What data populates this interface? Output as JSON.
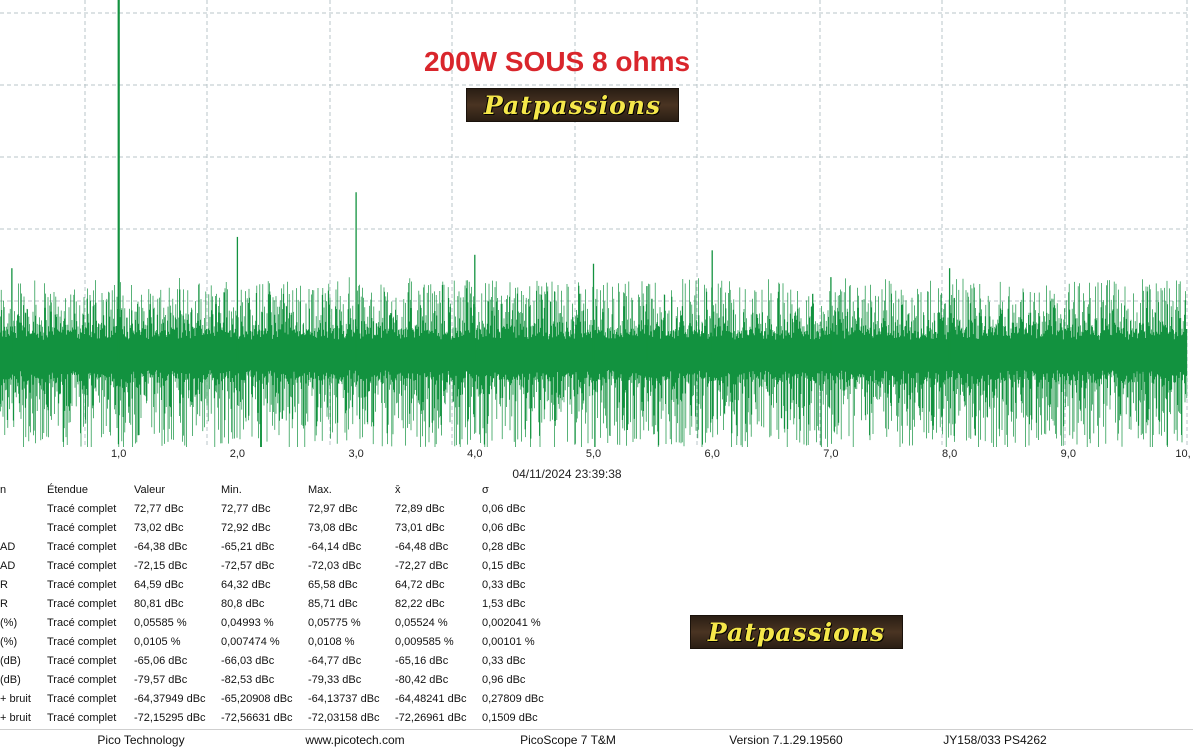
{
  "overlay": {
    "title": "200W SOUS 8 ohms",
    "logo_top": "Patpassions",
    "logo_bottom": "Patpassions"
  },
  "spectrum": {
    "x_range": [
      0,
      10
    ],
    "x_ticks": [
      "1,0",
      "2,0",
      "3,0",
      "4,0",
      "5,0",
      "6,0",
      "7,0",
      "8,0",
      "9,0",
      "10,"
    ],
    "trace_color": "#12923f",
    "grid_color": "#b8c4c8",
    "harmonic_peaks": [
      {
        "x": 1.0,
        "level": 1.0
      },
      {
        "x": 2.0,
        "level": 0.47
      },
      {
        "x": 3.0,
        "level": 0.57
      },
      {
        "x": 4.0,
        "level": 0.43
      },
      {
        "x": 5.0,
        "level": 0.41
      },
      {
        "x": 6.0,
        "level": 0.44
      },
      {
        "x": 7.0,
        "level": 0.38
      },
      {
        "x": 8.0,
        "level": 0.4
      },
      {
        "x": 5.45,
        "level": 0.36
      },
      {
        "x": 0.1,
        "level": 0.4
      }
    ]
  },
  "timestamp": "04/11/2024 23:39:38",
  "measurements": {
    "headers": [
      "n",
      "Étendue",
      "Valeur",
      "Min.",
      "Max.",
      "x̄",
      "σ"
    ],
    "rows": [
      [
        "",
        "Tracé complet",
        "72,77 dBc",
        "72,77 dBc",
        "72,97 dBc",
        "72,89 dBc",
        "0,06 dBc"
      ],
      [
        "",
        "Tracé complet",
        "73,02 dBc",
        "72,92 dBc",
        "73,08 dBc",
        "73,01 dBc",
        "0,06 dBc"
      ],
      [
        "AD",
        "Tracé complet",
        "-64,38 dBc",
        "-65,21 dBc",
        "-64,14 dBc",
        "-64,48 dBc",
        "0,28 dBc"
      ],
      [
        "AD",
        "Tracé complet",
        "-72,15 dBc",
        "-72,57 dBc",
        "-72,03 dBc",
        "-72,27 dBc",
        "0,15 dBc"
      ],
      [
        "R",
        "Tracé complet",
        "64,59 dBc",
        "64,32 dBc",
        "65,58 dBc",
        "64,72 dBc",
        "0,33 dBc"
      ],
      [
        "R",
        "Tracé complet",
        "80,81 dBc",
        "80,8 dBc",
        "85,71 dBc",
        "82,22 dBc",
        "1,53 dBc"
      ],
      [
        "(%)",
        "Tracé complet",
        "0,05585 %",
        "0,04993 %",
        "0,05775 %",
        "0,05524 %",
        "0,002041 %"
      ],
      [
        "(%)",
        "Tracé complet",
        "0,0105 %",
        "0,007474 %",
        "0,0108 %",
        "0,009585 %",
        "0,00101 %"
      ],
      [
        "(dB)",
        "Tracé complet",
        "-65,06 dBc",
        "-66,03 dBc",
        "-64,77 dBc",
        "-65,16 dBc",
        "0,33 dBc"
      ],
      [
        "(dB)",
        "Tracé complet",
        "-79,57 dBc",
        "-82,53 dBc",
        "-79,33 dBc",
        "-80,42 dBc",
        "0,96 dBc"
      ],
      [
        "+ bruit",
        "Tracé complet",
        "-64,37949 dBc",
        "-65,20908 dBc",
        "-64,13737 dBc",
        "-64,48241 dBc",
        "0,27809 dBc"
      ],
      [
        "+ bruit",
        "Tracé complet",
        "-72,15295 dBc",
        "-72,56631 dBc",
        "-72,03158 dBc",
        "-72,26961 dBc",
        "0,1509 dBc"
      ]
    ]
  },
  "footer": {
    "company": "Pico Technology",
    "website": "www.picotech.com",
    "product": "PicoScope 7 T&M",
    "version": "Version 7.1.29.19560",
    "device": "JY158/033 PS4262"
  }
}
